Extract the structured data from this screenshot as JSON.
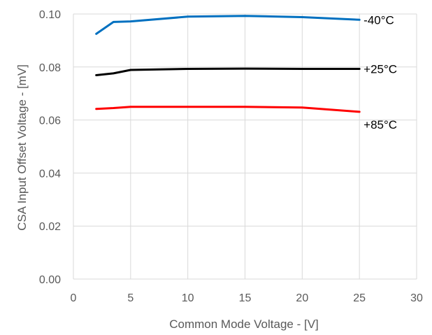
{
  "chart_data": {
    "type": "line",
    "title": "",
    "xlabel": "Common Mode Voltage - [V]",
    "ylabel": "CSA Input Offset Voltage - [mV]",
    "xlim": [
      0,
      30
    ],
    "ylim": [
      0,
      0.1
    ],
    "x_ticks": [
      "0",
      "5",
      "10",
      "15",
      "20",
      "25",
      "30"
    ],
    "y_ticks": [
      "0.00",
      "0.02",
      "0.04",
      "0.06",
      "0.08",
      "0.10"
    ],
    "grid": "vertical and horizontal",
    "legend": "none",
    "series": [
      {
        "name": "-40°C",
        "color": "#0070C0",
        "x": [
          2,
          3.5,
          5,
          10,
          15,
          20,
          25
        ],
        "y": [
          0.0925,
          0.097,
          0.0972,
          0.099,
          0.0993,
          0.0988,
          0.0978
        ]
      },
      {
        "name": "+25°C",
        "color": "#000000",
        "x": [
          2,
          3.5,
          5,
          10,
          15,
          20,
          25
        ],
        "y": [
          0.0769,
          0.0776,
          0.0789,
          0.0793,
          0.0794,
          0.0793,
          0.0793
        ]
      },
      {
        "name": "+85°C",
        "color": "#FF0000",
        "x": [
          2,
          3.5,
          5,
          10,
          15,
          20,
          25
        ],
        "y": [
          0.0642,
          0.0645,
          0.065,
          0.065,
          0.065,
          0.0647,
          0.0631
        ]
      }
    ]
  }
}
